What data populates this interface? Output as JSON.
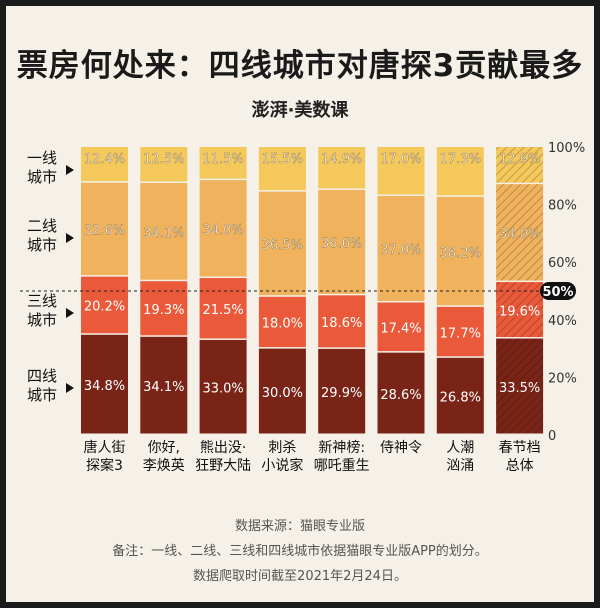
{
  "title": "票房何处来：四线城市对唐探3贡献最多",
  "brand": "澎湃·美数课",
  "tier_labels": [
    {
      "line1": "一线",
      "line2": "城市"
    },
    {
      "line1": "二线",
      "line2": "城市"
    },
    {
      "line1": "三线",
      "line2": "城市"
    },
    {
      "line1": "四线",
      "line2": "城市"
    }
  ],
  "colors": {
    "tier1": "#f4c85a",
    "tier2": "#f0b25c",
    "tier3": "#ea5a3a",
    "tier4": "#7a2418",
    "reference_badge": "#111111"
  },
  "reference_label": "50%",
  "footer": {
    "source": "数据来源：猫眼专业版",
    "note": "备注：一线、二线、三线和四线城市依据猫眼专业版APP的划分。",
    "date": "数据爬取时间截至2021年2月24日。"
  },
  "chart_data": {
    "type": "bar",
    "stacked": true,
    "orientation": "vertical",
    "categories": [
      [
        "唐人街",
        "探案3"
      ],
      [
        "你好,",
        "李焕英"
      ],
      [
        "熊出没·",
        "狂野大陆"
      ],
      [
        "刺杀",
        "小说家"
      ],
      [
        "新神榜:",
        "哪吒重生"
      ],
      [
        "侍神令"
      ],
      [
        "人潮",
        "汹涌"
      ],
      [
        "春节档",
        "总体"
      ]
    ],
    "series": [
      {
        "key": "tier4",
        "values": [
          34.8,
          34.1,
          33.0,
          30.0,
          29.9,
          28.6,
          26.8,
          33.5
        ],
        "labels": [
          "34.8%",
          "34.1%",
          "33.0%",
          "30.0%",
          "29.9%",
          "28.6%",
          "26.8%",
          "33.5%"
        ]
      },
      {
        "key": "tier3",
        "values": [
          20.2,
          19.3,
          21.5,
          18.0,
          18.6,
          17.4,
          17.7,
          19.6
        ],
        "labels": [
          "20.2%",
          "19.3%",
          "21.5%",
          "18.0%",
          "18.6%",
          "17.4%",
          "17.7%",
          "19.6%"
        ]
      },
      {
        "key": "tier2",
        "values": [
          32.6,
          34.1,
          34.0,
          36.5,
          36.6,
          37.0,
          38.2,
          34.0
        ],
        "labels": [
          "32.6%",
          "34.1%",
          "34.0%",
          "36.5%",
          "36.6%",
          "37.0%",
          "38.2%",
          "34.0%"
        ]
      },
      {
        "key": "tier1",
        "values": [
          12.4,
          12.5,
          11.5,
          15.5,
          14.9,
          17.0,
          17.3,
          12.9
        ],
        "labels": [
          "12.4%",
          "12.5%",
          "11.5%",
          "15.5%",
          "14.9%",
          "17.0%",
          "17.3%",
          "12.9%"
        ]
      }
    ],
    "ylim": [
      0,
      100
    ],
    "yticks": [
      0,
      20,
      40,
      60,
      80,
      100
    ],
    "ytick_labels": [
      "0",
      "20%",
      "40%",
      "60%",
      "80%",
      "100%"
    ],
    "reference_line": 50,
    "hatched_category_index": 7
  }
}
